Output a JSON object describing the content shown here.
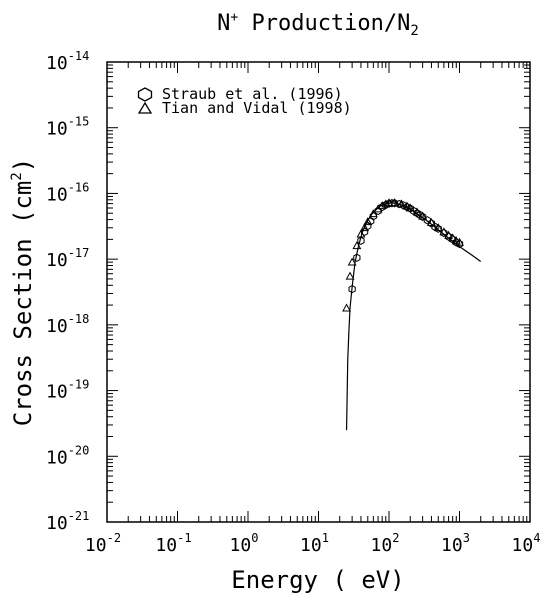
{
  "chart_data": {
    "type": "scatter",
    "title": "N+ Production/N2",
    "title_parts": {
      "species": "N",
      "charge": "+",
      "rest": " Production/N",
      "subscript": "2"
    },
    "xlabel": "Energy ( eV)",
    "ylabel": "Cross Section (cm2)",
    "ylabel_parts": {
      "main": "Cross Section (cm",
      "sup": "2",
      "close": ")"
    },
    "x_scale": "log",
    "y_scale": "log",
    "xlim": [
      0.01,
      10000
    ],
    "ylim": [
      1e-21,
      1e-14
    ],
    "x_ticks": [
      {
        "base": "10",
        "exp": "-2",
        "value": 0.01
      },
      {
        "base": "10",
        "exp": "-1",
        "value": 0.1
      },
      {
        "base": "10",
        "exp": "0",
        "value": 1
      },
      {
        "base": "10",
        "exp": "1",
        "value": 10
      },
      {
        "base": "10",
        "exp": "2",
        "value": 100
      },
      {
        "base": "10",
        "exp": "3",
        "value": 1000
      },
      {
        "base": "10",
        "exp": "4",
        "value": 10000
      }
    ],
    "y_ticks": [
      {
        "base": "10",
        "exp": "-14",
        "value": 1e-14
      },
      {
        "base": "10",
        "exp": "-15",
        "value": 1e-15
      },
      {
        "base": "10",
        "exp": "-16",
        "value": 1e-16
      },
      {
        "base": "10",
        "exp": "-17",
        "value": 1e-17
      },
      {
        "base": "10",
        "exp": "-18",
        "value": 1e-18
      },
      {
        "base": "10",
        "exp": "-19",
        "value": 1e-19
      },
      {
        "base": "10",
        "exp": "-20",
        "value": 1e-20
      },
      {
        "base": "10",
        "exp": "-21",
        "value": 1e-21
      }
    ],
    "grid": false,
    "legend_position": "top-left",
    "fit_curve": {
      "x": [
        25,
        26,
        27,
        28,
        30,
        33,
        37,
        42,
        50,
        60,
        75,
        90,
        110,
        130,
        160,
        200,
        250,
        300,
        400,
        500,
        700,
        1000,
        1500,
        2000
      ],
      "y": [
        2.5e-20,
        3e-19,
        8e-19,
        1.8e-18,
        3.8e-18,
        9e-18,
        1.6e-17,
        2.6e-17,
        3.9e-17,
        5.2e-17,
        6.4e-17,
        7e-17,
        7.2e-17,
        7e-17,
        6.5e-17,
        5.8e-17,
        4.9e-17,
        4.3e-17,
        3.4e-17,
        2.8e-17,
        2.1e-17,
        1.55e-17,
        1.15e-17,
        9.2e-18
      ]
    },
    "series": [
      {
        "name": "Straub et al. (1996)",
        "marker": "circle",
        "x": [
          30,
          35,
          40,
          45,
          50,
          55,
          60,
          70,
          80,
          90,
          100,
          110,
          120,
          140,
          160,
          180,
          200,
          225,
          250,
          275,
          300,
          350,
          400,
          450,
          500,
          600,
          700,
          800,
          900,
          1000
        ],
        "y": [
          3.5e-18,
          1.05e-17,
          1.9e-17,
          2.6e-17,
          3.2e-17,
          3.8e-17,
          4.5e-17,
          5.4e-17,
          6.2e-17,
          6.7e-17,
          7e-17,
          7.1e-17,
          7.1e-17,
          6.9e-17,
          6.6e-17,
          6.2e-17,
          5.9e-17,
          5.4e-17,
          5e-17,
          4.7e-17,
          4.4e-17,
          3.9e-17,
          3.5e-17,
          3.1e-17,
          2.9e-17,
          2.5e-17,
          2.2e-17,
          2e-17,
          1.8e-17,
          1.7e-17
        ]
      },
      {
        "name": "Tian and Vidal (1998)",
        "marker": "triangle",
        "x": [
          25,
          28,
          30,
          35,
          40,
          45,
          50,
          60,
          70,
          80,
          90,
          100,
          120,
          150,
          180,
          200,
          250,
          300,
          400,
          500,
          600,
          700,
          800,
          900,
          1000
        ],
        "y": [
          1.8e-18,
          5.5e-18,
          9e-18,
          1.6e-17,
          2.4e-17,
          3e-17,
          3.7e-17,
          4.9e-17,
          5.8e-17,
          6.5e-17,
          6.9e-17,
          7.2e-17,
          7.2e-17,
          6.9e-17,
          6.4e-17,
          6e-17,
          5.2e-17,
          4.5e-17,
          3.6e-17,
          3e-17,
          2.6e-17,
          2.3e-17,
          2.1e-17,
          1.9e-17,
          1.8e-17
        ]
      }
    ]
  }
}
